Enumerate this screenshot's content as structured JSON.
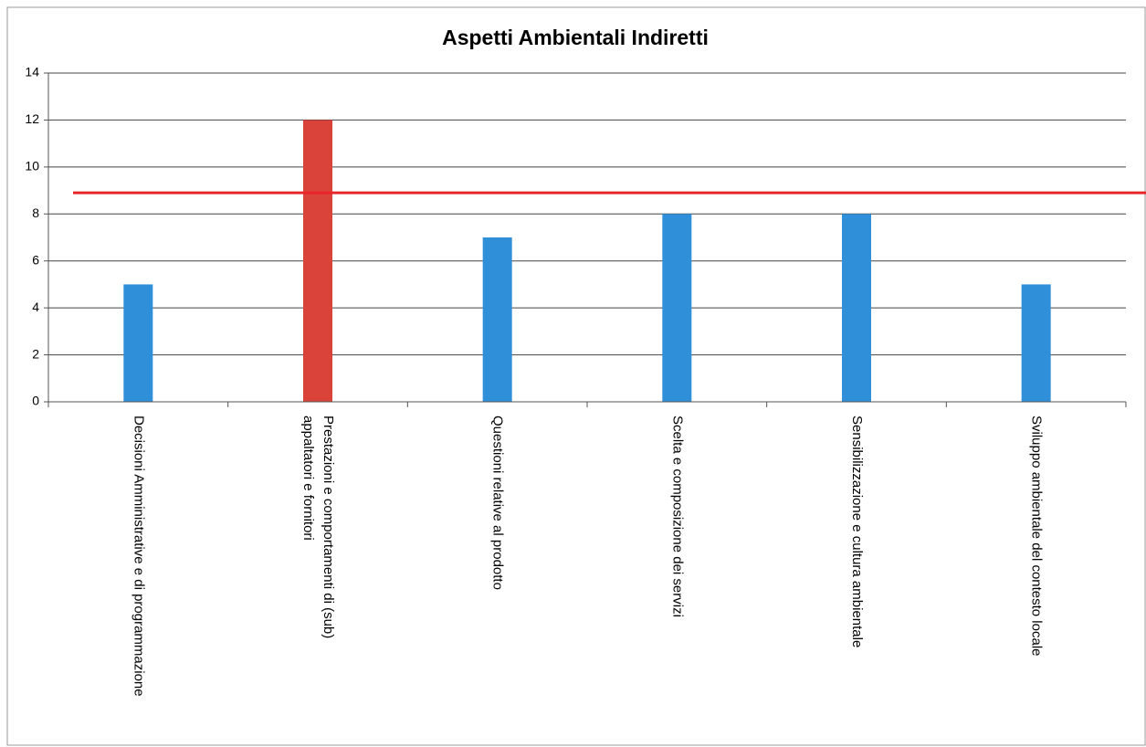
{
  "chart_data": {
    "type": "bar",
    "title": "Aspetti Ambientali Indiretti",
    "categories": [
      "Decisioni Amministrative e di programmazione",
      "Prestazioni e comportamenti di (sub)\nappaltatori e fornitori",
      "Questioni relative al prodotto",
      "Scelta e composizione dei servizi",
      "Sensibilizzazione e cultura ambientale",
      "Sviluppo ambientale del contesto locale"
    ],
    "values": [
      5,
      12,
      7,
      8,
      8,
      5
    ],
    "colors": [
      "#2f8fd8",
      "#d9433a",
      "#2f8fd8",
      "#2f8fd8",
      "#2f8fd8",
      "#2f8fd8"
    ],
    "ylim": [
      0,
      14
    ],
    "yticks": [
      0,
      2,
      4,
      6,
      8,
      10,
      12,
      14
    ],
    "grid": true,
    "reference_line": {
      "value": 8.9,
      "color": "#e8262a"
    }
  }
}
